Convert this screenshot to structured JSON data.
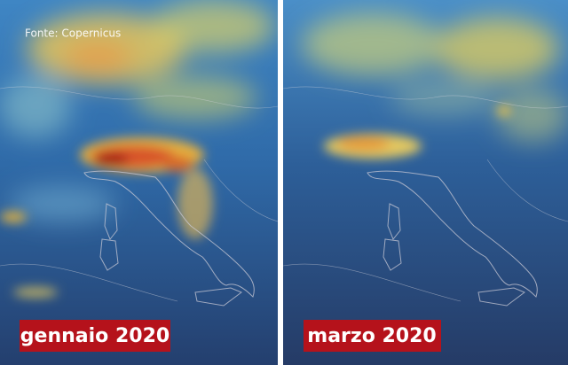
{
  "source": "Fonte: Copernicus",
  "panels": [
    {
      "label": "gennaio 2020"
    },
    {
      "label": "marzo 2020"
    }
  ]
}
